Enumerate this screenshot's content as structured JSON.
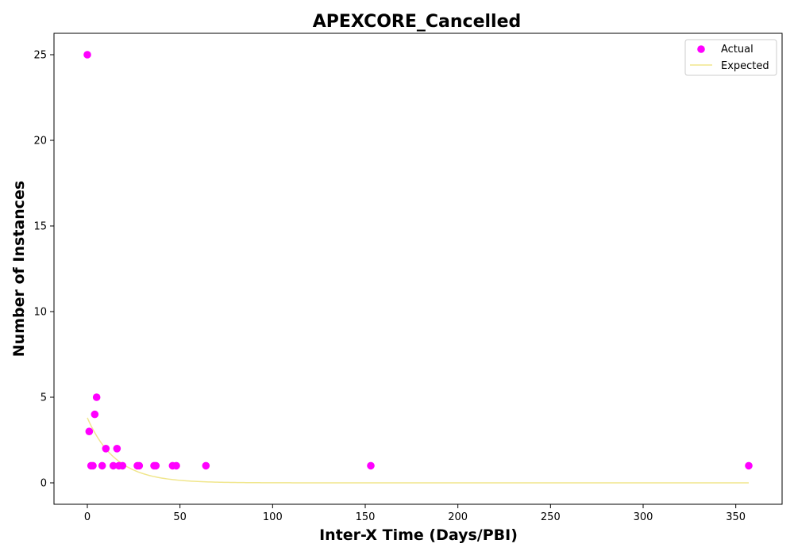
{
  "chart_data": {
    "type": "scatter",
    "title": "APEXCORE_Cancelled",
    "xlabel": "Inter-X Time (Days/PBI)",
    "ylabel": "Number of Instances",
    "xlim": [
      -18,
      375
    ],
    "ylim": [
      -1.25,
      26.25
    ],
    "xticks": [
      0,
      50,
      100,
      150,
      200,
      250,
      300,
      350
    ],
    "yticks": [
      0,
      5,
      10,
      15,
      20,
      25
    ],
    "grid": false,
    "legend_position": "top-right",
    "series": [
      {
        "name": "Actual",
        "kind": "scatter",
        "color": "#ff00ff",
        "points": [
          [
            0,
            25
          ],
          [
            1,
            3
          ],
          [
            2,
            1
          ],
          [
            3,
            1
          ],
          [
            4,
            4
          ],
          [
            5,
            5
          ],
          [
            8,
            1
          ],
          [
            10,
            2
          ],
          [
            14,
            1
          ],
          [
            16,
            2
          ],
          [
            17,
            1
          ],
          [
            19,
            1
          ],
          [
            27,
            1
          ],
          [
            28,
            1
          ],
          [
            36,
            1
          ],
          [
            37,
            1
          ],
          [
            46,
            1
          ],
          [
            48,
            1
          ],
          [
            64,
            1
          ],
          [
            153,
            1
          ],
          [
            357,
            1
          ]
        ]
      },
      {
        "name": "Expected",
        "kind": "line",
        "color": "#f0e68c",
        "model": "exponential",
        "a": 3.8,
        "rate": 0.065,
        "x_range": [
          0,
          357
        ]
      }
    ]
  }
}
